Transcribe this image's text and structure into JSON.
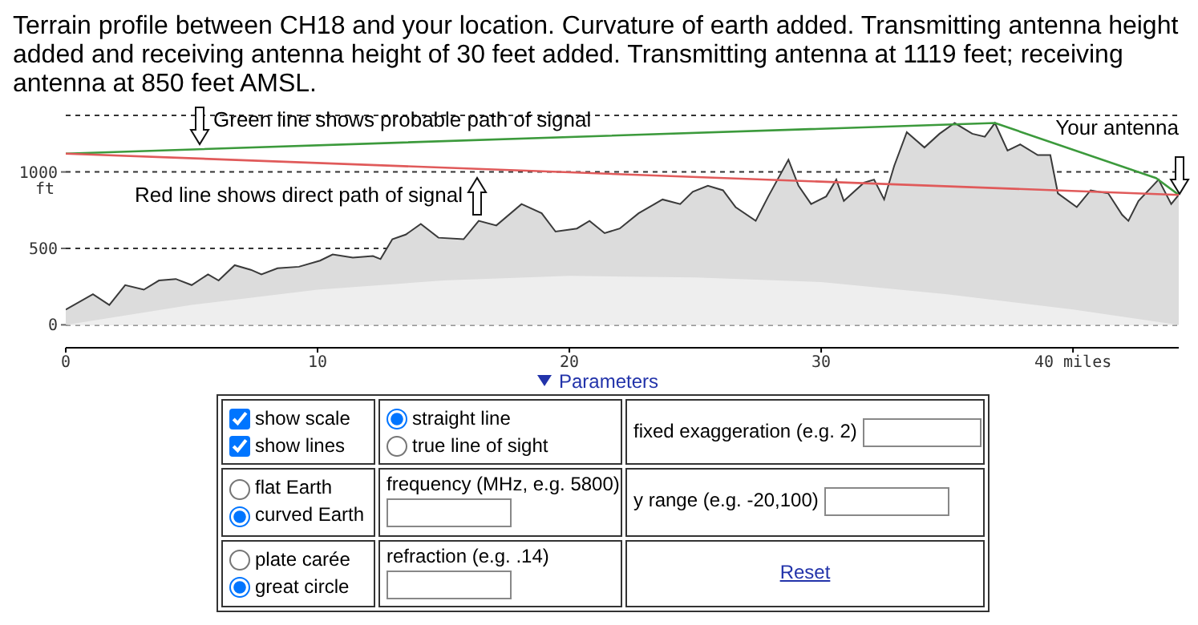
{
  "chart_data": {
    "type": "area",
    "title": "Terrain profile between CH18 and your location. Curvature of earth added. Transmitting antenna height added and receiving antenna height of 30 feet added. Transmitting antenna at 1119 feet; receiving antenna at 850 feet AMSL.",
    "ylabel": "ft",
    "xlim": [
      0,
      44.2
    ],
    "xticks": [
      0,
      10,
      20,
      30,
      {
        "value": 40,
        "label": "40 miles"
      }
    ],
    "ylim": [
      -150,
      1370
    ],
    "yticks": [
      0,
      500,
      1000
    ],
    "grid": "y",
    "series": [
      {
        "color": "#dcdcdc",
        "x": [
          0,
          1.08,
          1.73,
          2.36,
          3.1,
          3.7,
          4.37,
          5.0,
          5.65,
          6.07,
          6.71,
          7.35,
          7.77,
          8.41,
          9.26,
          10.1,
          10.6,
          11.4,
          12.2,
          12.5,
          12.97,
          13.5,
          14.1,
          14.8,
          15.8,
          16.4,
          17.1,
          18.1,
          18.9,
          19.45,
          20.3,
          20.8,
          21.4,
          22.0,
          22.75,
          23.7,
          24.4,
          24.9,
          25.5,
          26.1,
          26.6,
          27.4,
          27.9,
          28.7,
          29.1,
          29.6,
          30.2,
          30.6,
          30.9,
          31.7,
          32.1,
          32.5,
          32.9,
          33.4,
          34.1,
          34.7,
          35.3,
          36.0,
          36.5,
          36.9,
          37.4,
          37.9,
          38.6,
          39.1,
          39.4,
          40.15,
          40.7,
          41.4,
          41.95,
          42.2,
          42.6,
          43.4,
          43.9,
          44.2
        ],
        "values": [
          100,
          200,
          130,
          260,
          230,
          290,
          300,
          260,
          330,
          290,
          390,
          360,
          330,
          370,
          380,
          420,
          460,
          440,
          450,
          430,
          560,
          590,
          660,
          570,
          560,
          680,
          650,
          790,
          730,
          610,
          630,
          680,
          600,
          630,
          730,
          820,
          790,
          870,
          910,
          880,
          770,
          680,
          840,
          1080,
          910,
          790,
          840,
          950,
          810,
          930,
          950,
          820,
          1040,
          1260,
          1160,
          1250,
          1320,
          1250,
          1230,
          1320,
          1140,
          1180,
          1110,
          1110,
          860,
          770,
          880,
          860,
          720,
          680,
          810,
          950,
          790,
          850
        ]
      },
      {
        "color": "#eeeeee",
        "x": [
          0,
          5,
          10,
          15,
          20,
          25,
          30,
          35,
          40,
          44.2
        ],
        "values": [
          0,
          130,
          230,
          290,
          320,
          310,
          280,
          200,
          100,
          0
        ]
      },
      {
        "type": "line",
        "color": "#3c9a3c",
        "x": [
          0,
          36.9,
          43.3,
          44.2
        ],
        "values": [
          1120,
          1320,
          960,
          850
        ]
      },
      {
        "type": "line",
        "color": "#e05a5a",
        "x": [
          0,
          44.2
        ],
        "values": [
          1120,
          850
        ]
      }
    ],
    "annotations": [
      "Green line shows probable path of signal",
      "Red line shows direct path of signal",
      {
        "text": "Your antenna",
        "x": 44.2,
        "y": 850
      },
      "Parameters",
      "show scale",
      "show lines",
      "straight line",
      "true line of sight",
      "fixed exaggeration (e.g. 2)",
      "flat Earth",
      "curved Earth",
      "frequency (MHz, e.g. 5800)",
      "y range (e.g. -20,100)",
      "plate carée",
      "great circle",
      "refraction (e.g. .14)",
      "Reset"
    ]
  }
}
